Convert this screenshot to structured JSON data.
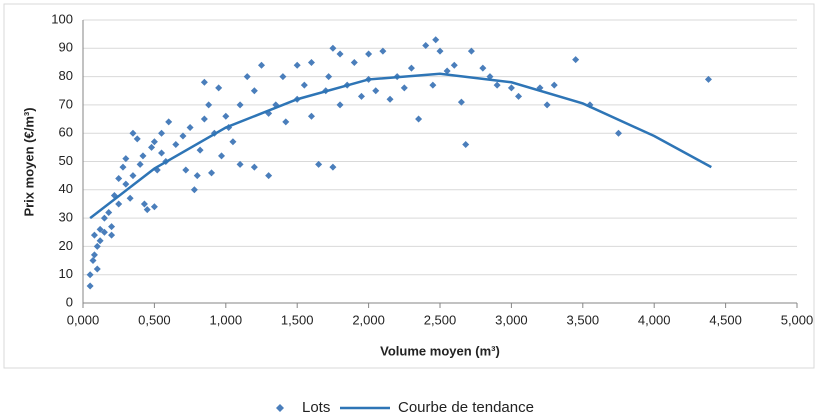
{
  "chart_data": {
    "type": "scatter",
    "x_label": "Volume moyen (m³)",
    "y_label": "Prix moyen (€/m³)",
    "xlim": [
      0,
      5
    ],
    "ylim": [
      0,
      100
    ],
    "xticks": [
      {
        "value": 0,
        "label": "0,000"
      },
      {
        "value": 0.5,
        "label": "0,500"
      },
      {
        "value": 1,
        "label": "1,000"
      },
      {
        "value": 1.5,
        "label": "1,500"
      },
      {
        "value": 2,
        "label": "2,000"
      },
      {
        "value": 2.5,
        "label": "2,500"
      },
      {
        "value": 3,
        "label": "3,000"
      },
      {
        "value": 3.5,
        "label": "3,500"
      },
      {
        "value": 4,
        "label": "4,000"
      },
      {
        "value": 4.5,
        "label": "4,500"
      },
      {
        "value": 5,
        "label": "5,000"
      }
    ],
    "yticks": [
      0,
      10,
      20,
      30,
      40,
      50,
      60,
      70,
      80,
      90,
      100
    ],
    "grid": true,
    "legend": "bottom",
    "series": [
      {
        "name": "Lots",
        "color": "#4a7ebb",
        "marker": "diamond",
        "x": [
          0.05,
          0.05,
          0.07,
          0.08,
          0.08,
          0.1,
          0.1,
          0.12,
          0.12,
          0.15,
          0.15,
          0.18,
          0.2,
          0.2,
          0.22,
          0.25,
          0.25,
          0.28,
          0.3,
          0.3,
          0.33,
          0.35,
          0.35,
          0.38,
          0.4,
          0.42,
          0.43,
          0.45,
          0.48,
          0.5,
          0.5,
          0.52,
          0.55,
          0.55,
          0.58,
          0.6,
          0.65,
          0.7,
          0.72,
          0.75,
          0.78,
          0.8,
          0.82,
          0.85,
          0.85,
          0.88,
          0.9,
          0.92,
          0.95,
          0.97,
          1.0,
          1.02,
          1.05,
          1.1,
          1.1,
          1.15,
          1.2,
          1.2,
          1.25,
          1.3,
          1.3,
          1.35,
          1.4,
          1.42,
          1.5,
          1.5,
          1.55,
          1.6,
          1.6,
          1.65,
          1.7,
          1.72,
          1.75,
          1.75,
          1.8,
          1.8,
          1.85,
          1.9,
          1.95,
          2.0,
          2.0,
          2.05,
          2.1,
          2.15,
          2.2,
          2.25,
          2.3,
          2.35,
          2.4,
          2.45,
          2.47,
          2.5,
          2.55,
          2.6,
          2.65,
          2.68,
          2.72,
          2.8,
          2.85,
          2.9,
          3.0,
          3.05,
          3.2,
          3.25,
          3.3,
          3.45,
          3.55,
          3.75,
          4.38
        ],
        "values": [
          6,
          10,
          15,
          17,
          24,
          12,
          20,
          26,
          22,
          30,
          25,
          32,
          27,
          24,
          38,
          35,
          44,
          48,
          51,
          42,
          37,
          60,
          45,
          58,
          49,
          52,
          35,
          33,
          55,
          34,
          57,
          47,
          53,
          60,
          50,
          64,
          56,
          59,
          47,
          62,
          40,
          45,
          54,
          78,
          65,
          70,
          46,
          60,
          76,
          52,
          66,
          62,
          57,
          70,
          49,
          80,
          75,
          48,
          84,
          67,
          45,
          70,
          80,
          64,
          72,
          84,
          77,
          66,
          85,
          49,
          75,
          80,
          90,
          48,
          88,
          70,
          77,
          85,
          73,
          79,
          88,
          75,
          89,
          72,
          80,
          76,
          83,
          65,
          91,
          77,
          93,
          89,
          82,
          84,
          71,
          56,
          89,
          83,
          80,
          77,
          76,
          73,
          76,
          70,
          77,
          86,
          70,
          60,
          79
        ]
      },
      {
        "name": "Courbe de tendance",
        "color": "#2e75b6",
        "line": true,
        "x": [
          0.05,
          0.5,
          1.0,
          1.5,
          2.0,
          2.5,
          3.0,
          3.5,
          4.0,
          4.4
        ],
        "values": [
          30,
          47.5,
          62,
          72,
          79,
          81,
          78,
          70.5,
          59,
          48
        ]
      }
    ]
  }
}
